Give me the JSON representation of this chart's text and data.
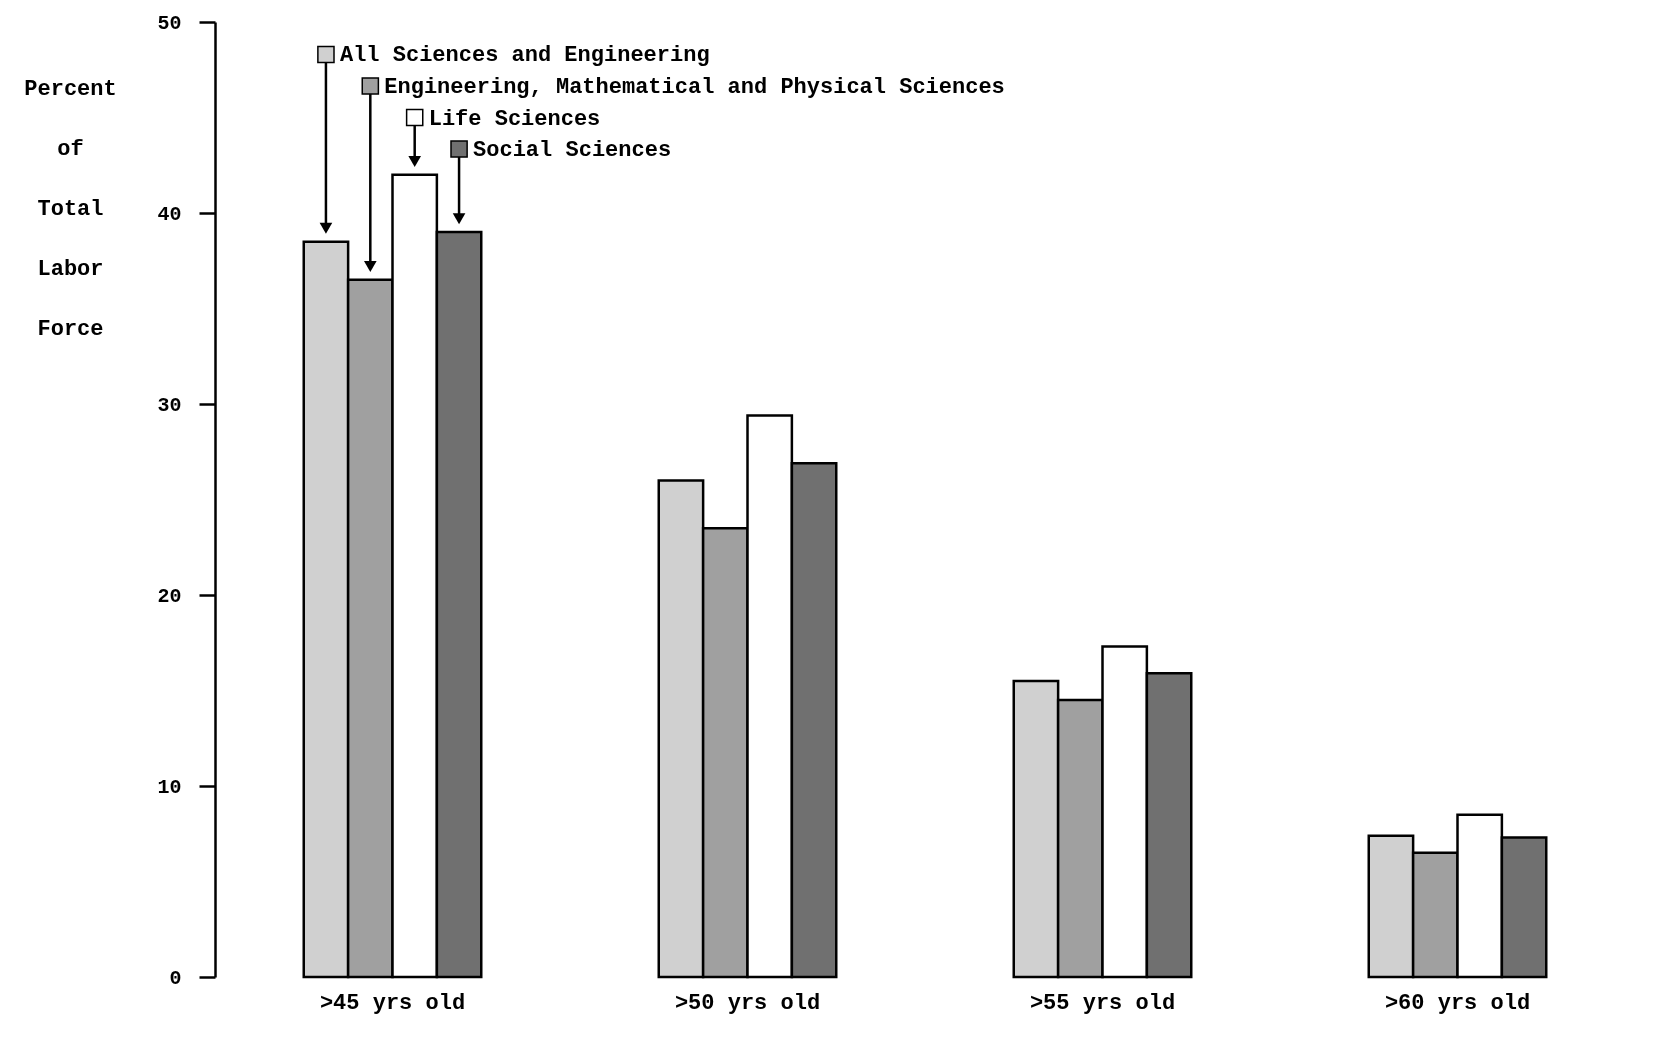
{
  "chart_data": {
    "type": "bar",
    "ylabel": "Percent of Total Labor Force",
    "categories": [
      ">45 yrs old",
      ">50 yrs old",
      ">55 yrs old",
      ">60 yrs old"
    ],
    "series": [
      {
        "name": "All Sciences and Engineering",
        "color": "#d0d0d0",
        "values": [
          38.5,
          26.0,
          15.5,
          7.4
        ]
      },
      {
        "name": "Engineering, Mathematical and Physical Sciences",
        "color": "#a0a0a0",
        "values": [
          36.5,
          23.5,
          14.5,
          6.5
        ]
      },
      {
        "name": "Life Sciences",
        "color": "#ffffff",
        "values": [
          42.0,
          29.4,
          17.3,
          8.5
        ]
      },
      {
        "name": "Social Sciences",
        "color": "#707070",
        "values": [
          39.0,
          26.9,
          15.9,
          7.3
        ]
      }
    ],
    "ylim": [
      0,
      50
    ],
    "yticks": [
      0,
      10,
      20,
      30,
      40,
      50
    ],
    "grid": false,
    "legend": "top left"
  }
}
